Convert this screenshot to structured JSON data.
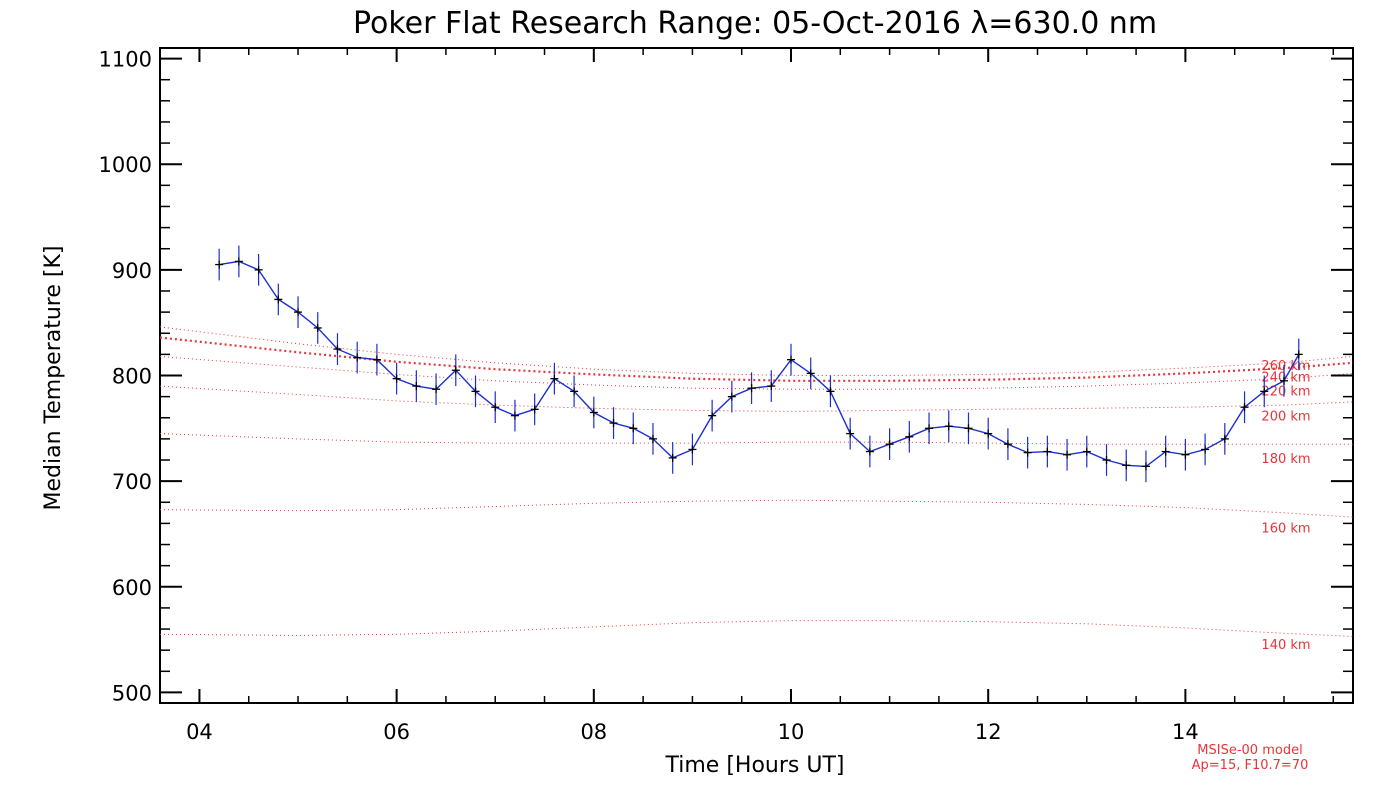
{
  "chart_data": {
    "type": "line",
    "title": "Poker Flat Research Range: 05-Oct-2016 λ=630.0 nm",
    "xlabel": "Time [Hours UT]",
    "ylabel": "Median Temperature [K]",
    "xlim": [
      3.6,
      15.7
    ],
    "ylim": [
      490,
      1110
    ],
    "x_ticks": [
      4,
      6,
      8,
      10,
      12,
      14
    ],
    "x_tick_labels": [
      "04",
      "06",
      "08",
      "10",
      "12",
      "14"
    ],
    "y_ticks": [
      500,
      600,
      700,
      800,
      900,
      1000,
      1100
    ],
    "y_tick_labels": [
      "500",
      "600",
      "700",
      "800",
      "900",
      "1000",
      "1100"
    ],
    "grid": false,
    "series": [
      {
        "kind": "measured",
        "color": "#1b2fd0",
        "marker_color": "#000000",
        "error_bar_halfwidth_K": 15,
        "x": [
          4.2,
          4.4,
          4.6,
          4.8,
          5.0,
          5.2,
          5.4,
          5.6,
          5.8,
          6.0,
          6.2,
          6.4,
          6.6,
          6.8,
          7.0,
          7.2,
          7.4,
          7.6,
          7.8,
          8.0,
          8.2,
          8.4,
          8.6,
          8.8,
          9.0,
          9.2,
          9.4,
          9.6,
          9.8,
          10.0,
          10.2,
          10.4,
          10.6,
          10.8,
          11.0,
          11.2,
          11.4,
          11.6,
          11.8,
          12.0,
          12.2,
          12.4,
          12.6,
          12.8,
          13.0,
          13.2,
          13.4,
          13.6,
          13.8,
          14.0,
          14.2,
          14.4,
          14.6,
          14.8,
          15.0,
          15.15
        ],
        "y": [
          905,
          908,
          900,
          872,
          860,
          845,
          825,
          817,
          815,
          797,
          790,
          787,
          805,
          785,
          770,
          762,
          768,
          797,
          785,
          765,
          755,
          750,
          740,
          722,
          730,
          762,
          780,
          788,
          790,
          815,
          802,
          785,
          745,
          728,
          735,
          742,
          750,
          752,
          750,
          745,
          735,
          727,
          728,
          725,
          728,
          720,
          715,
          714,
          728,
          725,
          730,
          740,
          770,
          785,
          795,
          820
        ]
      }
    ],
    "model_curves": [
      {
        "label": "140 km",
        "x": [
          3.6,
          5,
          6,
          7,
          8,
          9,
          10,
          11,
          12,
          13,
          14,
          15,
          15.7
        ],
        "y": [
          555,
          554,
          555,
          558,
          562,
          566,
          568,
          568,
          567,
          565,
          561,
          556,
          553
        ]
      },
      {
        "label": "160 km",
        "x": [
          3.6,
          5,
          6,
          7,
          8,
          9,
          10,
          11,
          12,
          13,
          14,
          15,
          15.7
        ],
        "y": [
          673,
          672,
          673,
          676,
          679,
          681,
          682,
          681,
          680,
          678,
          675,
          670,
          666
        ]
      },
      {
        "label": "180 km",
        "x": [
          3.6,
          5,
          6,
          7,
          8,
          9,
          10,
          11,
          12,
          13,
          14,
          15,
          15.7
        ],
        "y": [
          745,
          740,
          737,
          736,
          736,
          736,
          737,
          737,
          736,
          735,
          735,
          735,
          735
        ]
      },
      {
        "label": "200 km",
        "x": [
          3.6,
          5,
          6,
          7,
          8,
          9,
          10,
          11,
          12,
          13,
          14,
          15,
          15.7
        ],
        "y": [
          790,
          782,
          776,
          772,
          769,
          767,
          766,
          767,
          768,
          769,
          770,
          772,
          775
        ]
      },
      {
        "label": "220 km",
        "x": [
          3.6,
          5,
          6,
          7,
          8,
          9,
          10,
          11,
          12,
          13,
          14,
          15,
          15.7
        ],
        "y": [
          818,
          808,
          801,
          795,
          791,
          788,
          787,
          787,
          788,
          790,
          793,
          797,
          802
        ]
      },
      {
        "label": "240 km",
        "x": [
          3.6,
          5,
          6,
          7,
          8,
          9,
          10,
          11,
          12,
          13,
          14,
          15,
          15.7
        ],
        "y": [
          836,
          822,
          813,
          806,
          801,
          797,
          795,
          795,
          796,
          798,
          802,
          807,
          812
        ],
        "style": "dense"
      },
      {
        "label": "260 km",
        "x": [
          3.6,
          5,
          6,
          7,
          8,
          9,
          10,
          11,
          12,
          13,
          14,
          15,
          15.7
        ],
        "y": [
          846,
          830,
          820,
          812,
          806,
          802,
          800,
          800,
          801,
          803,
          807,
          812,
          818
        ]
      }
    ],
    "model_label_y": [
      {
        "label": "260 km",
        "y": 810
      },
      {
        "label": "240 km",
        "y": 799
      },
      {
        "label": "220 km",
        "y": 786
      },
      {
        "label": "200 km",
        "y": 762
      },
      {
        "label": "180 km",
        "y": 722
      },
      {
        "label": "160 km",
        "y": 656
      },
      {
        "label": "140 km",
        "y": 546
      }
    ],
    "model_color": "#e8343a",
    "model_note": [
      "MSISe-00 model",
      "Ap=15, F10.7=70"
    ]
  }
}
